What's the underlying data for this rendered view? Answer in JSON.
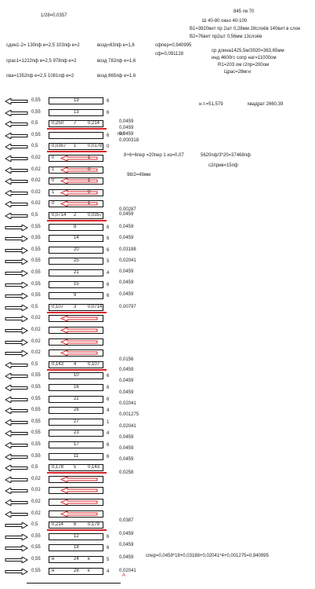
{
  "header": {
    "formula_top": "1/28=0,0357",
    "spec_main": "845  гм 70",
    "spec_window": "Ш  40-80       окно  40-100",
    "spec_b1": "B1=3920вит пр 2шт 0,28мм  28слоёв  140вит в слое",
    "spec_b2": "B2=76вит    пр2шт 0,56мм  13слоёв",
    "c_line1_a": "сдин1-2=  130пф  е=2,5   103пф  е=2",
    "c_line1_b": "возд=83пф  е=1,6",
    "c_line2_a": "срас1=1222пф  е=2,5   978пф  е=2",
    "c_line2_b": "возд 782пф  е=1,6",
    "c_line3_a": "сва=1352пф  е=2,5   1081пф  е=2",
    "c_line3_b": "возд 865пф е=1,6",
    "sfper": "сфпер=0,940995",
    "sf": "сф=0,091128",
    "sr_len": "ср длина1425,5м/3920=363,65мм",
    "ind": "инд 4600гс сопр наг=11000ом",
    "r1": "R1=203 ом      г2пр=200ом",
    "zras": "Црас=28мгн",
    "nt": "н.т.=51,579",
    "kvadrat": "квадрат   2660,39",
    "pit": "пит",
    "calc1": "8+6+6пер    =20пер  1 из=0,07",
    "calc2": "5620пф/3*20=37468пф",
    "calc3": "с2прив=15пф",
    "calc4": "98/2=49мм",
    "sper": "спер=0,0459*18+0,03188+0,02041*4+0,001275=0,940995",
    "mark_a": "A"
  },
  "rows": [
    {
      "left": "0,55",
      "c": "19",
      "right": "6",
      "arrow": "L"
    },
    {
      "left": "0,55",
      "c": "13",
      "right": "6",
      "arrow": "L"
    },
    {
      "left": "0,5",
      "l": "0,250",
      "c": "7",
      "r": "0,214",
      "right": "",
      "arrow": "L"
    },
    {
      "left": "0,55",
      "c": "",
      "right": "6",
      "arrow": "L"
    },
    {
      "left": "0,5",
      "l": "0,0357",
      "c": "1",
      "r": "0,0178",
      "right": "0",
      "arrow": "L"
    },
    {
      "left": "0,02",
      "l": "0",
      "c": "",
      "r": "1",
      "right": "",
      "arrow": "L",
      "red": true
    },
    {
      "left": "0,02",
      "l": "1",
      "c": "",
      "r": "0",
      "right": "",
      "arrow": "L",
      "red": true
    },
    {
      "left": "0,02",
      "l": "0",
      "c": "",
      "r": "1",
      "right": "",
      "arrow": "L",
      "red": true
    },
    {
      "left": "0,02",
      "l": "1",
      "c": "",
      "r": "0",
      "right": "",
      "arrow": "L",
      "red": true
    },
    {
      "left": "0,02",
      "l": "0",
      "c": "",
      "r": "1",
      "right": "",
      "arrow": "L",
      "red": true
    },
    {
      "left": "0,5",
      "l": "0,0714",
      "c": "2",
      "r": "0,0357",
      "right": "",
      "arrow": "L"
    },
    {
      "left": "0,55",
      "c": "8",
      "right": "6",
      "arrow": "R"
    },
    {
      "left": "0,55",
      "c": "14",
      "right": "6",
      "arrow": "R"
    },
    {
      "left": "0,55",
      "c": "20",
      "right": "6",
      "arrow": "R"
    },
    {
      "left": "0,55",
      "c": "25",
      "right": "5",
      "arrow": "R"
    },
    {
      "left": "0,55",
      "c": "21",
      "right": "4",
      "arrow": "R"
    },
    {
      "left": "0,55",
      "c": "15",
      "right": "6",
      "arrow": "R"
    },
    {
      "left": "0,55",
      "c": "9",
      "right": "6",
      "arrow": "R"
    },
    {
      "left": "0,5",
      "l": "0,107",
      "c": "3",
      "r": "0,0714",
      "right": "",
      "arrow": "R"
    },
    {
      "left": "0,02",
      "c": "",
      "right": "",
      "arrow": "R",
      "red": true
    },
    {
      "left": "0,02",
      "c": "",
      "right": "",
      "arrow": "R",
      "red": true
    },
    {
      "left": "0,02",
      "c": "",
      "right": "",
      "arrow": "R",
      "red": true
    },
    {
      "left": "0,02",
      "c": "",
      "right": "",
      "arrow": "R",
      "red": true
    },
    {
      "left": "0,5",
      "l": "0,143",
      "c": "4",
      "r": "0,107",
      "right": "",
      "arrow": "L"
    },
    {
      "left": "0,55",
      "c": "10",
      "right": "6",
      "arrow": "L"
    },
    {
      "left": "0,55",
      "c": "16",
      "right": "6",
      "arrow": "L"
    },
    {
      "left": "0,55",
      "c": "22",
      "right": "6",
      "arrow": "L"
    },
    {
      "left": "0,55",
      "c": "26",
      "right": "4",
      "arrow": "L"
    },
    {
      "left": "0,55",
      "c": "27",
      "right": "1",
      "arrow": "L"
    },
    {
      "left": "0,55",
      "c": "23",
      "right": "4",
      "arrow": "L"
    },
    {
      "left": "0,55",
      "c": "17",
      "right": "6",
      "arrow": "L"
    },
    {
      "left": "0,55",
      "c": "11",
      "right": "6",
      "arrow": "L"
    },
    {
      "left": "0,5",
      "l": "0,178",
      "c": "5",
      "r": "0,143",
      "right": "",
      "arrow": "L"
    },
    {
      "left": "0,02",
      "c": "",
      "right": "",
      "arrow": "L",
      "red": true
    },
    {
      "left": "0,02",
      "c": "",
      "right": "",
      "arrow": "L",
      "red": true
    },
    {
      "left": "0,02",
      "c": "",
      "right": "",
      "arrow": "L",
      "red": true
    },
    {
      "left": "0,02",
      "c": "",
      "right": "",
      "arrow": "L",
      "red": true
    },
    {
      "left": "0,5",
      "l": "0,214",
      "c": "6",
      "r": "0,178",
      "right": "",
      "arrow": "R"
    },
    {
      "left": "0,55",
      "c": "12",
      "right": "6",
      "arrow": "R"
    },
    {
      "left": "0,55",
      "c": "18",
      "right": "6",
      "arrow": "R"
    },
    {
      "left": "0,55",
      "l": "н",
      "c": "24",
      "r": "к",
      "right": "5",
      "arrow": "R"
    },
    {
      "left": "0,55",
      "l": "н",
      "c": "28",
      "r": "к",
      "right": "4",
      "arrow": "R"
    }
  ],
  "side_values": [
    "0,0459",
    "0,0459",
    "0,0459",
    "0,000318",
    "0,00287",
    "0,0459",
    "0,0459",
    "0,0459",
    "0,03188",
    "0,02041",
    "0,0459",
    "0,0459",
    "0,0459",
    "0,00797",
    "0,0156",
    "0,0459",
    "0,0459",
    "0,0459",
    "0,02041",
    "0,001275",
    "0,02041",
    "0,0459",
    "0,0459",
    "0,0459",
    "0,0258",
    "0,0387",
    "0,0459",
    "0,0459",
    "0,0459",
    "0,02041"
  ]
}
